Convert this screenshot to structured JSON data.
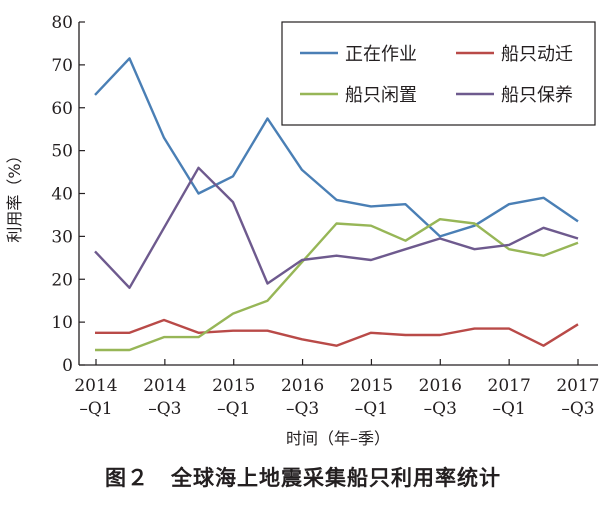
{
  "chart_data": {
    "type": "line",
    "title": "",
    "xlabel": "时间（年–季）",
    "ylabel": "利用率（%）",
    "ylim": [
      0,
      80
    ],
    "yticks": [
      0,
      10,
      20,
      30,
      40,
      50,
      60,
      70,
      80
    ],
    "grid": false,
    "legend_position": "top-right",
    "x_tick_labels": [
      {
        "line1": "2014",
        "line2": "–Q1"
      },
      {
        "line1": "2014",
        "line2": "–Q3"
      },
      {
        "line1": "2015",
        "line2": "–Q1"
      },
      {
        "line1": "2016",
        "line2": "–Q3"
      },
      {
        "line1": "2015",
        "line2": "–Q1"
      },
      {
        "line1": "2016",
        "line2": "–Q3"
      },
      {
        "line1": "2017",
        "line2": "–Q1"
      },
      {
        "line1": "2017",
        "line2": "–Q3"
      }
    ],
    "series": [
      {
        "name": "正在作业",
        "color": "#4a7fb5",
        "values": [
          63,
          71.5,
          53,
          40,
          44,
          57.5,
          45.5,
          38.5,
          37,
          37.5,
          30,
          32.5,
          37.5,
          39,
          33.5
        ]
      },
      {
        "name": "船只动迁",
        "color": "#b94a48",
        "values": [
          7.5,
          7.5,
          10.5,
          7.5,
          8,
          8,
          6,
          4.5,
          7.5,
          7,
          7,
          8.5,
          8.5,
          4.5,
          9.5
        ]
      },
      {
        "name": "船只闲置",
        "color": "#97b657",
        "values": [
          3.5,
          3.5,
          6.5,
          6.5,
          12,
          15,
          24,
          33,
          32.5,
          29,
          34,
          33,
          27,
          25.5,
          28.5
        ]
      },
      {
        "name": "船只保养",
        "color": "#6e5a8e",
        "values": [
          26.5,
          18,
          32,
          46,
          38,
          19,
          24.5,
          25.5,
          24.5,
          27,
          29.5,
          27,
          28,
          32,
          29.5
        ]
      }
    ]
  },
  "caption": "图２　全球海上地震采集船只利用率统计"
}
